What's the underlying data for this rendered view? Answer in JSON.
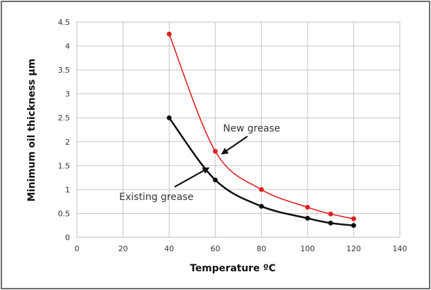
{
  "chart_data": {
    "type": "line",
    "title": "",
    "xlabel": "Temperature   ºC",
    "ylabel": "Minimum oil thickness µm",
    "xlim": [
      0,
      140
    ],
    "ylim": [
      0,
      4.5
    ],
    "x_ticks": [
      0,
      20,
      40,
      60,
      80,
      100,
      120,
      140
    ],
    "y_ticks": [
      0,
      0.5,
      1,
      1.5,
      2,
      2.5,
      3,
      3.5,
      4,
      4.5
    ],
    "x_tick_labels": [
      "0",
      "20",
      "40",
      "60",
      "80",
      "100",
      "120",
      "140"
    ],
    "y_tick_labels": [
      "0",
      "0.5",
      "1",
      "1.5",
      "2",
      "2.5",
      "3",
      "3.5",
      "4",
      "4.5"
    ],
    "grid": true,
    "series": [
      {
        "name": "New grease",
        "color": "#e02020",
        "x": [
          40,
          60,
          80,
          100,
          110,
          120
        ],
        "y": [
          4.25,
          1.8,
          1.0,
          0.63,
          0.49,
          0.39
        ]
      },
      {
        "name": "Existing grease",
        "color": "#111111",
        "x": [
          40,
          60,
          80,
          100,
          110,
          120
        ],
        "y": [
          2.5,
          1.2,
          0.65,
          0.4,
          0.3,
          0.25
        ]
      }
    ],
    "annotations": [
      {
        "text": "New grease",
        "series": "New grease",
        "arrow_to": [
          63,
          1.75
        ]
      },
      {
        "text": "Existing grease",
        "series": "Existing grease",
        "arrow_to": [
          57,
          1.45
        ]
      }
    ]
  }
}
